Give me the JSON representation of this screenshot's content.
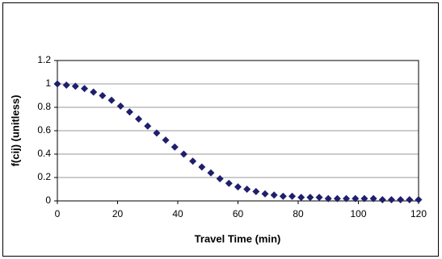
{
  "chart_data": {
    "type": "scatter",
    "x_label": "Travel Time (min)",
    "y_label": "f(cij) (unitless)",
    "x": [
      0,
      3,
      6,
      9,
      12,
      15,
      18,
      21,
      24,
      27,
      30,
      33,
      36,
      39,
      42,
      45,
      48,
      51,
      54,
      57,
      60,
      63,
      66,
      69,
      72,
      75,
      78,
      81,
      84,
      87,
      90,
      93,
      96,
      99,
      102,
      105,
      108,
      111,
      114,
      117,
      120
    ],
    "values": [
      1.0,
      0.99,
      0.98,
      0.96,
      0.93,
      0.9,
      0.86,
      0.81,
      0.76,
      0.7,
      0.64,
      0.58,
      0.52,
      0.46,
      0.4,
      0.34,
      0.29,
      0.24,
      0.19,
      0.15,
      0.12,
      0.1,
      0.08,
      0.06,
      0.05,
      0.04,
      0.04,
      0.03,
      0.03,
      0.03,
      0.02,
      0.02,
      0.02,
      0.02,
      0.02,
      0.02,
      0.01,
      0.01,
      0.01,
      0.01,
      0.01
    ],
    "color": "#1f1f6e",
    "xlim": [
      0,
      120
    ],
    "xticks": [
      0,
      20,
      40,
      60,
      80,
      100,
      120
    ],
    "ylim": [
      0,
      1.2
    ],
    "yticks": [
      0,
      0.2,
      0.4,
      0.6,
      0.8,
      1,
      1.2
    ],
    "grid": true
  }
}
